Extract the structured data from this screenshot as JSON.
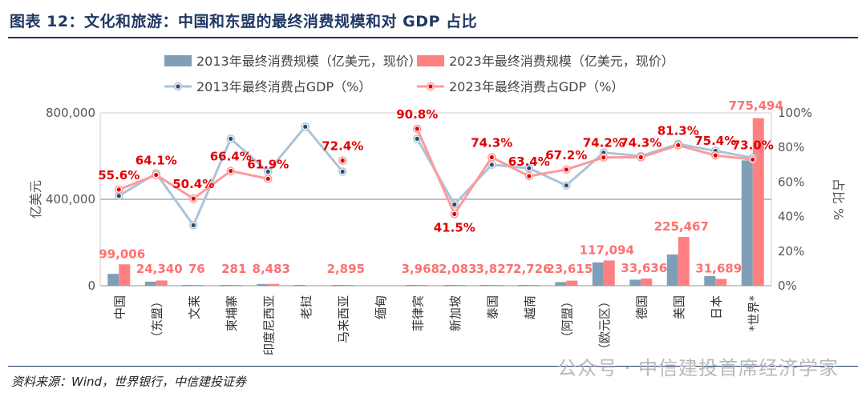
{
  "header": {
    "title": "图表 12：文化和旅游：中国和东盟的最终消费规模和对 GDP 占比"
  },
  "footer": {
    "source": "资料来源：Wind，世界银行，中信建投证券",
    "watermark": "公众号 · 中信建投首席经济学家"
  },
  "chart_data": {
    "type": "bar",
    "categories": [
      "中国",
      "（东盟）",
      "文莱",
      "柬埔寨",
      "印度尼西亚",
      "老挝",
      "马来西亚",
      "缅甸",
      "菲律宾",
      "新加坡",
      "泰国",
      "越南",
      "（阿盟）",
      "（欧元区）",
      "德国",
      "美国",
      "日本",
      "*世界*"
    ],
    "series": [
      {
        "name": "2013年最终消费规模（亿美元，现价）",
        "kind": "bar",
        "axis": "left",
        "color": "#7f9fb8",
        "values": [
          55000,
          19000,
          55,
          180,
          8000,
          1100,
          2200,
          null,
          2500,
          1600,
          2800,
          1800,
          17000,
          108000,
          28000,
          145000,
          45000,
          580000
        ]
      },
      {
        "name": "2023年最终消费规模（亿美元，现价）",
        "kind": "bar",
        "axis": "left",
        "color": "#ff8080",
        "values": [
          99006,
          24340,
          76,
          281,
          8483,
          null,
          2895,
          null,
          3968,
          2083,
          3827,
          2726,
          23615,
          117094,
          33636,
          225467,
          31689,
          775494
        ],
        "labels": [
          "99,006",
          "24,340",
          "76",
          "281",
          "8,483",
          "",
          "2,895",
          "",
          "3,968",
          "2,083",
          "3,827",
          "2,726",
          "23,615",
          "117,094",
          "33,636",
          "225,467",
          "31,689",
          "775,494"
        ]
      },
      {
        "name": "2013年最终消费占GDP（%）",
        "kind": "line",
        "axis": "right",
        "color": "#a9c4da",
        "marker": "#2e4a6b",
        "values": [
          52,
          65,
          35,
          85,
          66,
          92,
          66,
          null,
          85,
          47,
          70,
          68,
          58,
          77,
          75,
          82,
          78,
          74
        ],
        "segments": [
          [
            0,
            6
          ],
          [
            8,
            17
          ]
        ]
      },
      {
        "name": "2023年最终消费占GDP（%）",
        "kind": "line",
        "axis": "right",
        "color": "#ff9999",
        "marker": "#e00000",
        "values": [
          55.6,
          64.1,
          50.4,
          66.4,
          61.9,
          null,
          72.4,
          null,
          90.8,
          41.5,
          74.3,
          63.4,
          67.2,
          74.2,
          74.3,
          81.3,
          75.4,
          73.0
        ],
        "labels": [
          "55.6%",
          "64.1%",
          "50.4%",
          "66.4%",
          "61.9%",
          "",
          "72.4%",
          "",
          "90.8%",
          "41.5%",
          "74.3%",
          "63.4%",
          "67.2%",
          "74.2%",
          "74.3%",
          "81.3%",
          "75.4%",
          "73.0%"
        ],
        "segments": [
          [
            0,
            4
          ],
          [
            6,
            6
          ],
          [
            8,
            17
          ]
        ]
      }
    ],
    "y_left": {
      "label": "亿美元",
      "min": 0,
      "max": 800000,
      "ticks": [
        0,
        400000,
        800000
      ],
      "tick_labels": [
        "0",
        "400,000",
        "800,000"
      ]
    },
    "y_right": {
      "label": "占比 %",
      "min": 0,
      "max": 100,
      "ticks": [
        0,
        20,
        40,
        60,
        80,
        100
      ],
      "tick_labels": [
        "0%",
        "20%",
        "40%",
        "60%",
        "80%",
        "100%"
      ]
    },
    "gridlines": [
      400000
    ],
    "legend_position": "top"
  }
}
